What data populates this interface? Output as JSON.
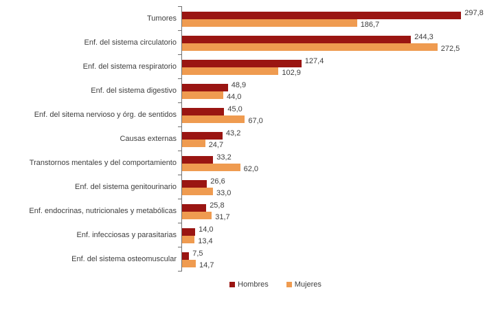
{
  "chart_data": {
    "type": "bar",
    "orientation": "horizontal",
    "title": "",
    "xlabel": "",
    "ylabel": "",
    "xlim": [
      0,
      335
    ],
    "grid": false,
    "legend_position": "bottom",
    "decimal_separator": ",",
    "categories": [
      "Tumores",
      "Enf. del sistema circulatorio",
      "Enf. del sistema respiratorio",
      "Enf. del sistema digestivo",
      "Enf. del sitema nervioso y órg. de sentidos",
      "Causas externas",
      "Transtornos mentales y del comportamiento",
      "Enf. del sistema genitourinario",
      "Enf. endocrinas, nutricionales y metabólicas",
      "Enf. infecciosas y parasitarias",
      "Enf. del sistema osteomuscular"
    ],
    "series": [
      {
        "name": "Hombres",
        "color": "#9a1512",
        "values": [
          297.8,
          244.3,
          127.4,
          48.9,
          45.0,
          43.2,
          33.2,
          26.6,
          25.8,
          14.0,
          7.5
        ],
        "value_labels": [
          "297,8",
          "244,3",
          "127,4",
          "48,9",
          "45,0",
          "43,2",
          "33,2",
          "26,6",
          "25,8",
          "14,0",
          "7,5"
        ]
      },
      {
        "name": "Mujeres",
        "color": "#ef9b50",
        "values": [
          186.7,
          272.5,
          102.9,
          44.0,
          67.0,
          24.7,
          62.0,
          33.0,
          31.7,
          13.4,
          14.7
        ],
        "value_labels": [
          "186,7",
          "272,5",
          "102,9",
          "44,0",
          "67,0",
          "24,7",
          "62,0",
          "33,0",
          "31,7",
          "13,4",
          "14,7"
        ]
      }
    ]
  },
  "legend": {
    "items": [
      {
        "label": "Hombres",
        "color": "#9a1512"
      },
      {
        "label": "Mujeres",
        "color": "#ef9b50"
      }
    ]
  }
}
